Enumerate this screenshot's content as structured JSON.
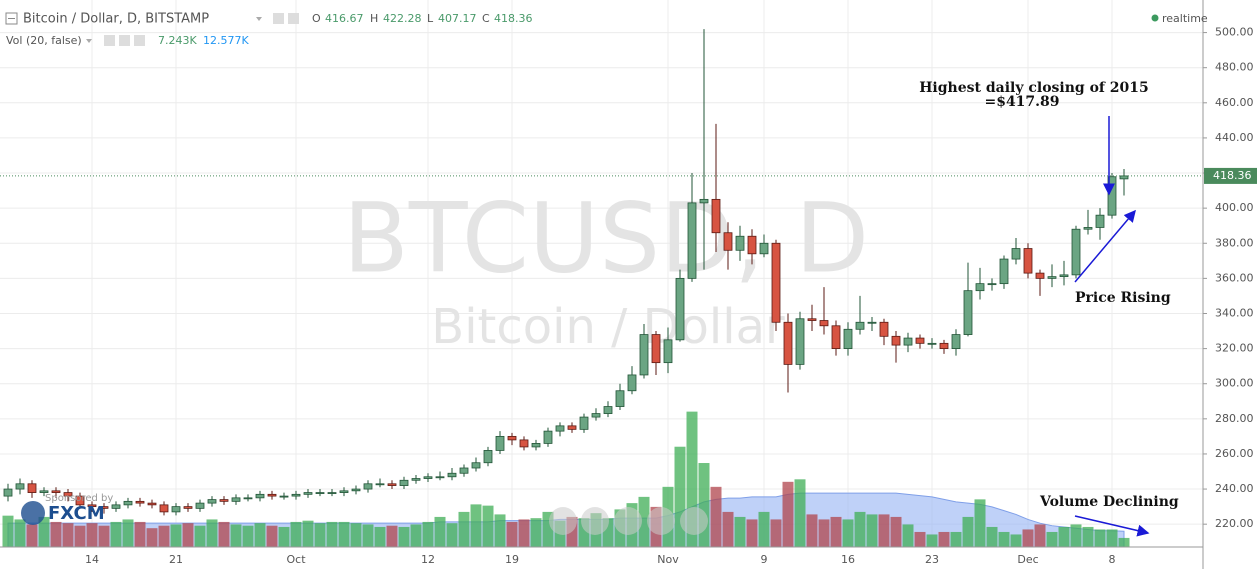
{
  "legend": {
    "symbol": "Bitcoin / Dollar, D, BITSTAMP",
    "o": "O",
    "h": "H",
    "l": "L",
    "c": "C",
    "vol": "Vol (20, false)",
    "vol_value": "7.243K",
    "vol_ma_value": "12.577K",
    "realtime": "realtime"
  },
  "watermark": {
    "symbol": "BTCUSD, D",
    "name": "Bitcoin / Dollar"
  },
  "sponsor": {
    "text": "Sponsored by",
    "brand": "FXCM"
  },
  "annotations": {
    "highest": "Highest daily closing of 2015",
    "highest_value": "=$417.89",
    "price": "Price Rising",
    "volume": "Volume Declining"
  },
  "chart_data": {
    "type": "candlestick",
    "categories": [
      null,
      null,
      null,
      null,
      null,
      null,
      null,
      "14",
      null,
      null,
      null,
      null,
      null,
      null,
      "21",
      null,
      null,
      null,
      null,
      null,
      null,
      null,
      null,
      null,
      "Oct",
      null,
      null,
      null,
      null,
      null,
      null,
      null,
      null,
      null,
      null,
      "12",
      null,
      null,
      null,
      null,
      null,
      null,
      "19",
      null,
      null,
      null,
      null,
      null,
      null,
      null,
      null,
      null,
      null,
      null,
      null,
      "Nov",
      null,
      null,
      null,
      null,
      null,
      null,
      null,
      "9",
      null,
      null,
      null,
      null,
      null,
      null,
      "16",
      null,
      null,
      null,
      null,
      null,
      null,
      "23",
      null,
      null,
      null,
      null,
      null,
      null,
      null,
      "Dec",
      null,
      null,
      null,
      null,
      null,
      null,
      "8",
      null
    ],
    "open": [
      236,
      240,
      243,
      238,
      239,
      238,
      236,
      231,
      230,
      229,
      231,
      233,
      232,
      231,
      227,
      230,
      229,
      232,
      234,
      233,
      235,
      235,
      237,
      236,
      236,
      237,
      238,
      238,
      238,
      239,
      240,
      243,
      243,
      242,
      245,
      246,
      247,
      247,
      249,
      252,
      255,
      262,
      270,
      268,
      264,
      266,
      273,
      276,
      274,
      281,
      283,
      287,
      296,
      305,
      328,
      312,
      325,
      360,
      403,
      405,
      386,
      376,
      384,
      374,
      380,
      335,
      311,
      337,
      336,
      333,
      320,
      331,
      335,
      335,
      327,
      322,
      326,
      323,
      323,
      320,
      328,
      353,
      357,
      357,
      371,
      377,
      363,
      360,
      361,
      362,
      388,
      389,
      396,
      416.67
    ],
    "high": [
      243,
      246,
      245,
      241,
      241,
      240,
      238,
      233,
      232,
      233,
      235,
      235,
      234,
      233,
      232,
      232,
      234,
      236,
      236,
      237,
      237,
      239,
      239,
      238,
      239,
      240,
      240,
      240,
      241,
      242,
      245,
      246,
      245,
      247,
      248,
      249,
      250,
      252,
      254,
      258,
      264,
      273,
      272,
      270,
      268,
      275,
      278,
      278,
      283,
      286,
      290,
      300,
      310,
      334,
      330,
      332,
      365,
      420,
      502,
      448,
      392,
      390,
      388,
      385,
      382,
      340,
      341,
      345,
      355,
      336,
      335,
      350,
      338,
      337,
      330,
      329,
      328,
      326,
      325,
      331,
      369,
      366,
      360,
      373,
      383,
      380,
      365,
      368,
      370,
      390,
      399,
      400,
      420,
      422.28
    ],
    "low": [
      233,
      237,
      235,
      236,
      235,
      233,
      229,
      227,
      226,
      227,
      229,
      230,
      229,
      225,
      225,
      227,
      227,
      230,
      231,
      231,
      233,
      233,
      234,
      234,
      234,
      235,
      236,
      236,
      236,
      237,
      238,
      241,
      240,
      240,
      243,
      244,
      245,
      245,
      247,
      250,
      253,
      260,
      265,
      262,
      262,
      264,
      270,
      272,
      272,
      279,
      281,
      285,
      294,
      303,
      305,
      306,
      324,
      358,
      365,
      375,
      365,
      370,
      368,
      372,
      330,
      295,
      308,
      330,
      328,
      316,
      316,
      328,
      330,
      322,
      312,
      318,
      320,
      320,
      317,
      316,
      327,
      348,
      353,
      354,
      368,
      360,
      350,
      355,
      356,
      360,
      385,
      382,
      394,
      407.17
    ],
    "close": [
      240,
      243,
      238,
      239,
      238,
      236,
      231,
      230,
      229,
      231,
      233,
      232,
      231,
      227,
      230,
      229,
      232,
      234,
      233,
      235,
      235,
      237,
      236,
      236,
      237,
      238,
      238,
      238,
      239,
      240,
      243,
      243,
      242,
      245,
      246,
      247,
      247,
      249,
      252,
      255,
      262,
      270,
      268,
      264,
      266,
      273,
      276,
      274,
      281,
      283,
      287,
      296,
      305,
      328,
      312,
      325,
      360,
      403,
      405,
      386,
      376,
      384,
      374,
      380,
      335,
      311,
      337,
      336,
      333,
      320,
      331,
      335,
      335,
      327,
      322,
      326,
      323,
      323,
      320,
      328,
      353,
      357,
      357,
      371,
      377,
      363,
      360,
      361,
      362,
      388,
      389,
      396,
      417.89,
      418.36
    ],
    "volume": [
      25,
      22,
      18,
      24,
      20,
      19,
      17,
      19,
      17,
      20,
      22,
      20,
      15,
      17,
      18,
      19,
      17,
      22,
      20,
      18,
      17,
      19,
      17,
      16,
      20,
      21,
      19,
      20,
      20,
      19,
      18,
      16,
      17,
      16,
      18,
      20,
      24,
      19,
      28,
      34,
      33,
      26,
      20,
      22,
      23,
      28,
      21,
      24,
      23,
      27,
      23,
      30,
      35,
      40,
      32,
      48,
      80,
      108,
      67,
      48,
      28,
      24,
      22,
      28,
      22,
      52,
      54,
      26,
      22,
      24,
      22,
      28,
      26,
      26,
      24,
      18,
      12,
      10,
      12,
      12,
      24,
      38,
      16,
      12,
      10,
      14,
      18,
      12,
      16,
      18,
      16,
      14,
      14,
      7.243
    ],
    "volume_ma": [
      19,
      19,
      19,
      19,
      19,
      19,
      19,
      19,
      19,
      19,
      19,
      19,
      19,
      19,
      19,
      19,
      19,
      19,
      19,
      19,
      19,
      19,
      19,
      19,
      19,
      19,
      19,
      19,
      19,
      19,
      19,
      19,
      19,
      19,
      19,
      19,
      20,
      20,
      20,
      20,
      20,
      21,
      21,
      21,
      21,
      21,
      22,
      22,
      22,
      22,
      22,
      23,
      23,
      23,
      23,
      25,
      28,
      32,
      36,
      38,
      39,
      39,
      40,
      40,
      40,
      42,
      43,
      43,
      43,
      43,
      43,
      43,
      43,
      43,
      43,
      42,
      41,
      40,
      38,
      36,
      35,
      34,
      32,
      29,
      26,
      22,
      19,
      17,
      16,
      15,
      14,
      13,
      13,
      12.577
    ],
    "up_color": "#6ba583",
    "down_color": "#d75442",
    "volume_ma_color": "#9db8f5",
    "ylim": [
      207,
      514
    ],
    "volume_lim": [
      0,
      430
    ],
    "yticks": [
      {
        "value": 220,
        "label": "220.00"
      },
      {
        "value": 240,
        "label": "240.00"
      },
      {
        "value": 260,
        "label": "260.00"
      },
      {
        "value": 280,
        "label": "280.00"
      },
      {
        "value": 300,
        "label": "300.00"
      },
      {
        "value": 320,
        "label": "320.00"
      },
      {
        "value": 340,
        "label": "340.00"
      },
      {
        "value": 360,
        "label": "360.00"
      },
      {
        "value": 380,
        "label": "380.00"
      },
      {
        "value": 400,
        "label": "400.00"
      },
      {
        "value": 420,
        "label": "420.00"
      },
      {
        "value": 440,
        "label": "440.00"
      },
      {
        "value": 460,
        "label": "460.00"
      },
      {
        "value": 480,
        "label": "480.00"
      },
      {
        "value": 500,
        "label": "500.00"
      }
    ],
    "grid": true
  }
}
